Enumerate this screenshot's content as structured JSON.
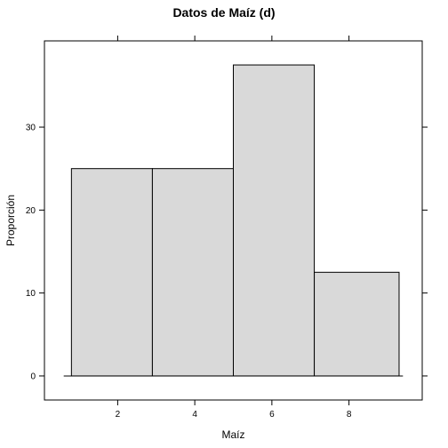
{
  "chart_data": {
    "type": "bar",
    "title": "Datos de Maíz (d)",
    "xlabel": "Maíz",
    "ylabel": "Proporción",
    "bins": [
      {
        "start": 0.8,
        "end": 2.9,
        "value": 25
      },
      {
        "start": 2.9,
        "end": 5.0,
        "value": 25
      },
      {
        "start": 5.0,
        "end": 7.1,
        "value": 37.5
      },
      {
        "start": 7.1,
        "end": 9.3,
        "value": 12.5
      }
    ],
    "xlim": [
      0.1,
      9.9
    ],
    "ylim": [
      -2.9,
      40.4
    ],
    "xticks": [
      2,
      4,
      6,
      8
    ],
    "yticks": [
      0,
      10,
      20,
      30
    ],
    "bar_fill": "#d9d9d9",
    "bar_stroke": "#000000"
  }
}
